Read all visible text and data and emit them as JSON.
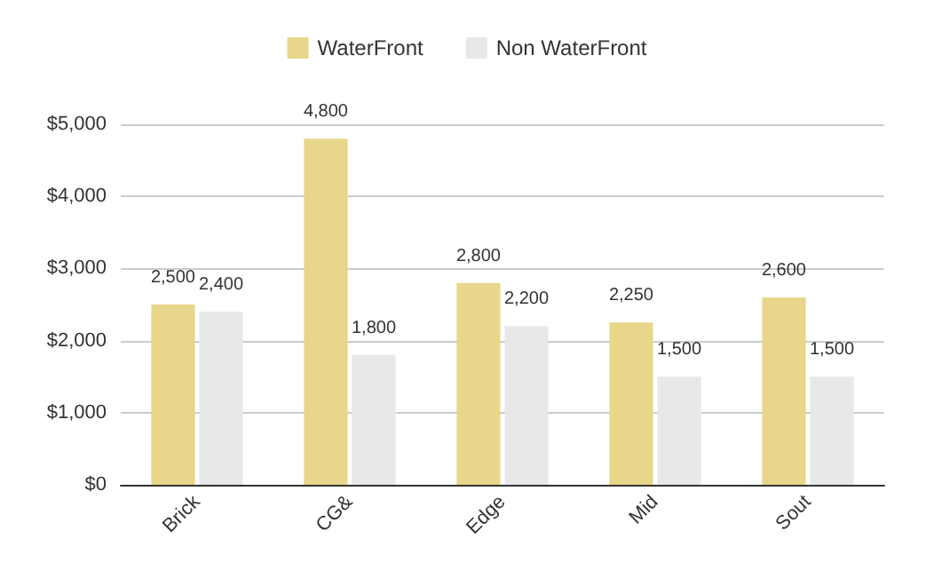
{
  "chart_data": {
    "type": "bar",
    "categories": [
      "Brick",
      "CG&",
      "Edge",
      "Mid",
      "Sout"
    ],
    "series": [
      {
        "name": "WaterFront",
        "color": "#e8d68a",
        "values": [
          2500,
          4800,
          2800,
          2250,
          2600
        ],
        "value_labels": [
          "2,500",
          "4,800",
          "2,800",
          "2,250",
          "2,600"
        ]
      },
      {
        "name": "Non WaterFront",
        "color": "#e8e8e8",
        "values": [
          2400,
          1800,
          2200,
          1500,
          1500
        ],
        "value_labels": [
          "2,400",
          "1,800",
          "2,200",
          "1,500",
          "1,500"
        ]
      }
    ],
    "ylim": [
      0,
      5000
    ],
    "yticks": [
      {
        "value": 0,
        "label": "$0"
      },
      {
        "value": 1000,
        "label": "$1,000"
      },
      {
        "value": 2000,
        "label": "$2,000"
      },
      {
        "value": 3000,
        "label": "$3,000"
      },
      {
        "value": 4000,
        "label": "$4,000"
      },
      {
        "value": 5000,
        "label": "$5,000"
      }
    ],
    "grid": "y",
    "legend": "top"
  }
}
